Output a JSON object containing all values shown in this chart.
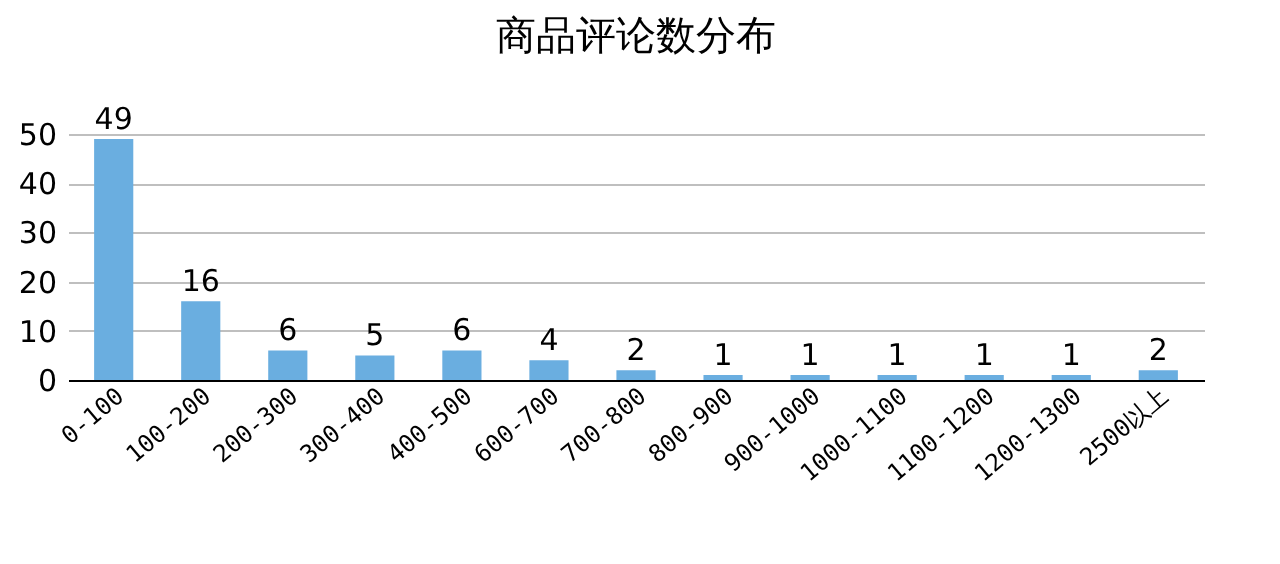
{
  "chart_data": {
    "type": "bar",
    "title": "商品评论数分布",
    "categories": [
      "0-100",
      "100-200",
      "200-300",
      "300-400",
      "400-500",
      "600-700",
      "700-800",
      "800-900",
      "900-1000",
      "1000-1100",
      "1100-1200",
      "1200-1300",
      "2500以上"
    ],
    "values": [
      49,
      16,
      6,
      5,
      6,
      4,
      2,
      1,
      1,
      1,
      1,
      1,
      2
    ],
    "color": "#6aaee0",
    "ylim": [
      0,
      50
    ],
    "yticks": [
      0,
      10,
      20,
      30,
      40,
      50
    ],
    "grid": "y",
    "data_labels": true
  }
}
